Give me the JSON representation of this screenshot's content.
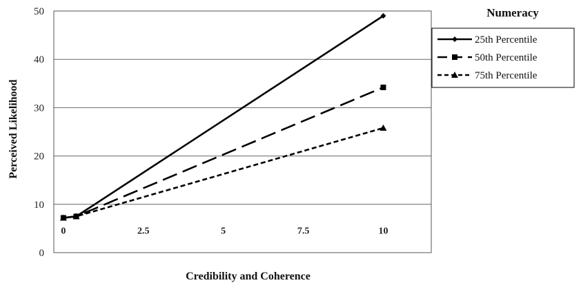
{
  "chart_data": {
    "type": "line",
    "title": "",
    "xlabel": "Credibility and Coherence",
    "ylabel": "Perceived Likelihood",
    "x_tick_labels": [
      "0",
      "2.5",
      "5",
      "7.5",
      "10"
    ],
    "x_ticks": [
      0,
      2.5,
      5,
      7.5,
      10
    ],
    "xlim": [
      -0.3,
      11.5
    ],
    "y_tick_labels": [
      "0",
      "10",
      "20",
      "30",
      "40",
      "50"
    ],
    "y_ticks": [
      0,
      10,
      20,
      30,
      40,
      50
    ],
    "ylim": [
      0,
      50
    ],
    "grid": "horizontal",
    "legend_title": "Numeracy",
    "legend_position": "top-right",
    "series": [
      {
        "name": "25th Percentile",
        "x": [
          0,
          0.4,
          10
        ],
        "y": [
          7.2,
          7.5,
          49
        ],
        "dash": "solid",
        "marker": "diamond",
        "color": "#000000"
      },
      {
        "name": "50th Percentile",
        "x": [
          0,
          0.4,
          10
        ],
        "y": [
          7.2,
          7.5,
          34.2
        ],
        "dash": "long-dash",
        "marker": "square",
        "color": "#000000"
      },
      {
        "name": "75th Percentile",
        "x": [
          0,
          0.4,
          10
        ],
        "y": [
          7.2,
          7.5,
          25.8
        ],
        "dash": "short-dash",
        "marker": "triangle",
        "color": "#000000"
      }
    ]
  }
}
